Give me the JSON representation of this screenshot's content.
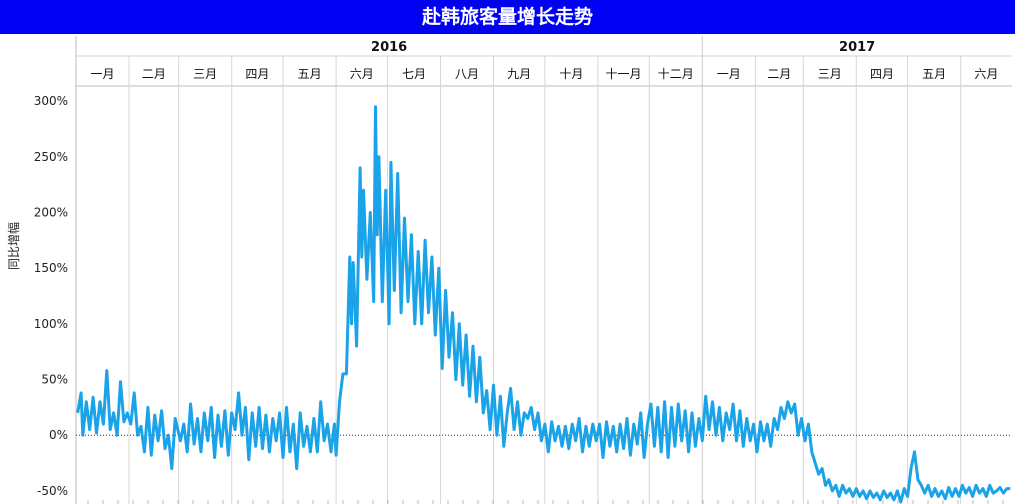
{
  "header": {
    "title": "赴韩旅客量增长走势"
  },
  "chart_data": {
    "type": "line",
    "title": "赴韩旅客量增长走势",
    "xlabel": "",
    "ylabel": "同比增幅",
    "years": [
      {
        "label": "2016",
        "months": [
          "一月",
          "二月",
          "三月",
          "四月",
          "五月",
          "六月",
          "七月",
          "八月",
          "九月",
          "十月",
          "十一月",
          "十二月"
        ]
      },
      {
        "label": "2017",
        "months": [
          "一月",
          "二月",
          "三月",
          "四月",
          "五月",
          "六月"
        ]
      }
    ],
    "y_ticks": [
      {
        "value": 300,
        "label": "300%"
      },
      {
        "value": 250,
        "label": "250%"
      },
      {
        "value": 200,
        "label": "200%"
      },
      {
        "value": 150,
        "label": "150%"
      },
      {
        "value": 100,
        "label": "100%"
      },
      {
        "value": 50,
        "label": "50%"
      },
      {
        "value": 0,
        "label": "0%"
      },
      {
        "value": -50,
        "label": "-50%"
      }
    ],
    "ylim": [
      -60,
      310
    ],
    "x_range": [
      "2016-01-01",
      "2017-06-30"
    ],
    "zero_line": true,
    "grid": "vertical month separators",
    "series": [
      {
        "name": "",
        "color": "#1aa3e8",
        "points": [
          [
            "2016-01-02",
            20
          ],
          [
            "2016-01-04",
            38
          ],
          [
            "2016-01-05",
            0
          ],
          [
            "2016-01-07",
            30
          ],
          [
            "2016-01-09",
            5
          ],
          [
            "2016-01-11",
            34
          ],
          [
            "2016-01-13",
            2
          ],
          [
            "2016-01-15",
            30
          ],
          [
            "2016-01-17",
            10
          ],
          [
            "2016-01-19",
            58
          ],
          [
            "2016-01-21",
            5
          ],
          [
            "2016-01-23",
            20
          ],
          [
            "2016-01-25",
            0
          ],
          [
            "2016-01-27",
            48
          ],
          [
            "2016-01-29",
            12
          ],
          [
            "2016-01-31",
            20
          ],
          [
            "2016-02-02",
            10
          ],
          [
            "2016-02-04",
            38
          ],
          [
            "2016-02-06",
            0
          ],
          [
            "2016-02-08",
            8
          ],
          [
            "2016-02-10",
            -15
          ],
          [
            "2016-02-12",
            25
          ],
          [
            "2016-02-14",
            -18
          ],
          [
            "2016-02-16",
            18
          ],
          [
            "2016-02-18",
            -5
          ],
          [
            "2016-02-20",
            22
          ],
          [
            "2016-02-22",
            -12
          ],
          [
            "2016-02-24",
            0
          ],
          [
            "2016-02-26",
            -30
          ],
          [
            "2016-02-28",
            15
          ],
          [
            "2016-03-02",
            -5
          ],
          [
            "2016-03-04",
            10
          ],
          [
            "2016-03-06",
            -15
          ],
          [
            "2016-03-08",
            28
          ],
          [
            "2016-03-10",
            -8
          ],
          [
            "2016-03-12",
            15
          ],
          [
            "2016-03-14",
            -15
          ],
          [
            "2016-03-16",
            20
          ],
          [
            "2016-03-18",
            -5
          ],
          [
            "2016-03-20",
            25
          ],
          [
            "2016-03-22",
            -20
          ],
          [
            "2016-03-24",
            18
          ],
          [
            "2016-03-26",
            -10
          ],
          [
            "2016-03-28",
            22
          ],
          [
            "2016-03-30",
            -18
          ],
          [
            "2016-04-01",
            20
          ],
          [
            "2016-04-03",
            5
          ],
          [
            "2016-04-05",
            38
          ],
          [
            "2016-04-07",
            0
          ],
          [
            "2016-04-09",
            25
          ],
          [
            "2016-04-11",
            -22
          ],
          [
            "2016-04-13",
            20
          ],
          [
            "2016-04-15",
            -10
          ],
          [
            "2016-04-17",
            25
          ],
          [
            "2016-04-19",
            -12
          ],
          [
            "2016-04-21",
            18
          ],
          [
            "2016-04-23",
            -15
          ],
          [
            "2016-04-25",
            15
          ],
          [
            "2016-04-27",
            -5
          ],
          [
            "2016-04-29",
            20
          ],
          [
            "2016-05-01",
            -20
          ],
          [
            "2016-05-03",
            25
          ],
          [
            "2016-05-05",
            -15
          ],
          [
            "2016-05-07",
            10
          ],
          [
            "2016-05-09",
            -30
          ],
          [
            "2016-05-11",
            20
          ],
          [
            "2016-05-13",
            -10
          ],
          [
            "2016-05-15",
            8
          ],
          [
            "2016-05-17",
            -15
          ],
          [
            "2016-05-19",
            15
          ],
          [
            "2016-05-21",
            -15
          ],
          [
            "2016-05-23",
            30
          ],
          [
            "2016-05-25",
            -5
          ],
          [
            "2016-05-27",
            10
          ],
          [
            "2016-05-29",
            -15
          ],
          [
            "2016-05-31",
            10
          ],
          [
            "2016-06-01",
            -18
          ],
          [
            "2016-06-03",
            30
          ],
          [
            "2016-06-05",
            55
          ],
          [
            "2016-06-07",
            55
          ],
          [
            "2016-06-09",
            160
          ],
          [
            "2016-06-10",
            100
          ],
          [
            "2016-06-11",
            155
          ],
          [
            "2016-06-13",
            80
          ],
          [
            "2016-06-15",
            240
          ],
          [
            "2016-06-16",
            160
          ],
          [
            "2016-06-17",
            220
          ],
          [
            "2016-06-19",
            140
          ],
          [
            "2016-06-21",
            200
          ],
          [
            "2016-06-23",
            120
          ],
          [
            "2016-06-24",
            295
          ],
          [
            "2016-06-25",
            180
          ],
          [
            "2016-06-26",
            250
          ],
          [
            "2016-06-28",
            120
          ],
          [
            "2016-06-30",
            220
          ],
          [
            "2016-07-02",
            100
          ],
          [
            "2016-07-03",
            245
          ],
          [
            "2016-07-05",
            130
          ],
          [
            "2016-07-07",
            235
          ],
          [
            "2016-07-09",
            110
          ],
          [
            "2016-07-11",
            195
          ],
          [
            "2016-07-13",
            120
          ],
          [
            "2016-07-15",
            180
          ],
          [
            "2016-07-17",
            100
          ],
          [
            "2016-07-19",
            165
          ],
          [
            "2016-07-21",
            100
          ],
          [
            "2016-07-23",
            175
          ],
          [
            "2016-07-25",
            110
          ],
          [
            "2016-07-27",
            160
          ],
          [
            "2016-07-29",
            90
          ],
          [
            "2016-07-31",
            150
          ],
          [
            "2016-08-02",
            60
          ],
          [
            "2016-08-04",
            130
          ],
          [
            "2016-08-06",
            70
          ],
          [
            "2016-08-08",
            110
          ],
          [
            "2016-08-10",
            50
          ],
          [
            "2016-08-12",
            100
          ],
          [
            "2016-08-14",
            45
          ],
          [
            "2016-08-16",
            90
          ],
          [
            "2016-08-18",
            35
          ],
          [
            "2016-08-20",
            80
          ],
          [
            "2016-08-22",
            30
          ],
          [
            "2016-08-24",
            70
          ],
          [
            "2016-08-26",
            20
          ],
          [
            "2016-08-28",
            40
          ],
          [
            "2016-08-30",
            5
          ],
          [
            "2016-09-01",
            45
          ],
          [
            "2016-09-03",
            0
          ],
          [
            "2016-09-05",
            35
          ],
          [
            "2016-09-07",
            -10
          ],
          [
            "2016-09-09",
            20
          ],
          [
            "2016-09-11",
            42
          ],
          [
            "2016-09-13",
            5
          ],
          [
            "2016-09-15",
            30
          ],
          [
            "2016-09-17",
            0
          ],
          [
            "2016-09-19",
            20
          ],
          [
            "2016-09-21",
            15
          ],
          [
            "2016-09-23",
            25
          ],
          [
            "2016-09-25",
            5
          ],
          [
            "2016-09-27",
            20
          ],
          [
            "2016-09-29",
            -5
          ],
          [
            "2016-10-01",
            10
          ],
          [
            "2016-10-03",
            -15
          ],
          [
            "2016-10-05",
            12
          ],
          [
            "2016-10-07",
            -5
          ],
          [
            "2016-10-09",
            8
          ],
          [
            "2016-10-11",
            -10
          ],
          [
            "2016-10-13",
            8
          ],
          [
            "2016-10-15",
            -12
          ],
          [
            "2016-10-17",
            10
          ],
          [
            "2016-10-19",
            -5
          ],
          [
            "2016-10-21",
            15
          ],
          [
            "2016-10-23",
            -15
          ],
          [
            "2016-10-25",
            8
          ],
          [
            "2016-10-27",
            -10
          ],
          [
            "2016-10-29",
            10
          ],
          [
            "2016-10-31",
            -5
          ],
          [
            "2016-11-02",
            10
          ],
          [
            "2016-11-04",
            -20
          ],
          [
            "2016-11-06",
            12
          ],
          [
            "2016-11-08",
            -10
          ],
          [
            "2016-11-10",
            8
          ],
          [
            "2016-11-12",
            -15
          ],
          [
            "2016-11-14",
            10
          ],
          [
            "2016-11-16",
            -12
          ],
          [
            "2016-11-18",
            15
          ],
          [
            "2016-11-20",
            -18
          ],
          [
            "2016-11-22",
            10
          ],
          [
            "2016-11-24",
            -8
          ],
          [
            "2016-11-26",
            20
          ],
          [
            "2016-11-28",
            -20
          ],
          [
            "2016-11-30",
            10
          ],
          [
            "2016-12-02",
            28
          ],
          [
            "2016-12-04",
            -10
          ],
          [
            "2016-12-06",
            25
          ],
          [
            "2016-12-08",
            -15
          ],
          [
            "2016-12-10",
            30
          ],
          [
            "2016-12-12",
            -20
          ],
          [
            "2016-12-14",
            25
          ],
          [
            "2016-12-16",
            -10
          ],
          [
            "2016-12-18",
            28
          ],
          [
            "2016-12-20",
            -5
          ],
          [
            "2016-12-22",
            22
          ],
          [
            "2016-12-24",
            -15
          ],
          [
            "2016-12-26",
            20
          ],
          [
            "2016-12-28",
            -10
          ],
          [
            "2016-12-30",
            15
          ],
          [
            "2017-01-01",
            -5
          ],
          [
            "2017-01-03",
            35
          ],
          [
            "2017-01-05",
            5
          ],
          [
            "2017-01-07",
            30
          ],
          [
            "2017-01-09",
            0
          ],
          [
            "2017-01-11",
            25
          ],
          [
            "2017-01-13",
            -5
          ],
          [
            "2017-01-15",
            20
          ],
          [
            "2017-01-17",
            5
          ],
          [
            "2017-01-19",
            28
          ],
          [
            "2017-01-21",
            -5
          ],
          [
            "2017-01-23",
            22
          ],
          [
            "2017-01-25",
            -10
          ],
          [
            "2017-01-27",
            15
          ],
          [
            "2017-01-29",
            -5
          ],
          [
            "2017-01-31",
            10
          ],
          [
            "2017-02-02",
            -15
          ],
          [
            "2017-02-04",
            12
          ],
          [
            "2017-02-06",
            -5
          ],
          [
            "2017-02-08",
            10
          ],
          [
            "2017-02-10",
            -10
          ],
          [
            "2017-02-12",
            15
          ],
          [
            "2017-02-14",
            5
          ],
          [
            "2017-02-16",
            25
          ],
          [
            "2017-02-18",
            15
          ],
          [
            "2017-02-20",
            30
          ],
          [
            "2017-02-22",
            20
          ],
          [
            "2017-02-24",
            28
          ],
          [
            "2017-02-26",
            0
          ],
          [
            "2017-02-28",
            15
          ],
          [
            "2017-03-02",
            -5
          ],
          [
            "2017-03-04",
            10
          ],
          [
            "2017-03-06",
            -15
          ],
          [
            "2017-03-08",
            -25
          ],
          [
            "2017-03-10",
            -35
          ],
          [
            "2017-03-12",
            -30
          ],
          [
            "2017-03-14",
            -45
          ],
          [
            "2017-03-16",
            -40
          ],
          [
            "2017-03-18",
            -50
          ],
          [
            "2017-03-20",
            -45
          ],
          [
            "2017-03-22",
            -55
          ],
          [
            "2017-03-24",
            -45
          ],
          [
            "2017-03-26",
            -52
          ],
          [
            "2017-03-28",
            -48
          ],
          [
            "2017-03-30",
            -55
          ],
          [
            "2017-04-01",
            -48
          ],
          [
            "2017-04-03",
            -55
          ],
          [
            "2017-04-05",
            -50
          ],
          [
            "2017-04-07",
            -57
          ],
          [
            "2017-04-09",
            -50
          ],
          [
            "2017-04-11",
            -56
          ],
          [
            "2017-04-13",
            -52
          ],
          [
            "2017-04-15",
            -58
          ],
          [
            "2017-04-17",
            -50
          ],
          [
            "2017-04-19",
            -56
          ],
          [
            "2017-04-21",
            -52
          ],
          [
            "2017-04-23",
            -58
          ],
          [
            "2017-04-25",
            -50
          ],
          [
            "2017-04-27",
            -60
          ],
          [
            "2017-04-29",
            -48
          ],
          [
            "2017-05-01",
            -55
          ],
          [
            "2017-05-03",
            -30
          ],
          [
            "2017-05-05",
            -15
          ],
          [
            "2017-05-07",
            -40
          ],
          [
            "2017-05-09",
            -45
          ],
          [
            "2017-05-11",
            -52
          ],
          [
            "2017-05-13",
            -45
          ],
          [
            "2017-05-15",
            -55
          ],
          [
            "2017-05-17",
            -48
          ],
          [
            "2017-05-19",
            -55
          ],
          [
            "2017-05-21",
            -50
          ],
          [
            "2017-05-23",
            -57
          ],
          [
            "2017-05-25",
            -47
          ],
          [
            "2017-05-27",
            -55
          ],
          [
            "2017-05-29",
            -48
          ],
          [
            "2017-05-31",
            -55
          ],
          [
            "2017-06-02",
            -45
          ],
          [
            "2017-06-04",
            -52
          ],
          [
            "2017-06-06",
            -47
          ],
          [
            "2017-06-08",
            -55
          ],
          [
            "2017-06-10",
            -45
          ],
          [
            "2017-06-12",
            -52
          ],
          [
            "2017-06-14",
            -48
          ],
          [
            "2017-06-16",
            -55
          ],
          [
            "2017-06-18",
            -45
          ],
          [
            "2017-06-20",
            -52
          ],
          [
            "2017-06-22",
            -50
          ],
          [
            "2017-06-24",
            -47
          ],
          [
            "2017-06-26",
            -52
          ],
          [
            "2017-06-28",
            -48
          ],
          [
            "2017-06-30",
            -48
          ]
        ]
      }
    ]
  }
}
